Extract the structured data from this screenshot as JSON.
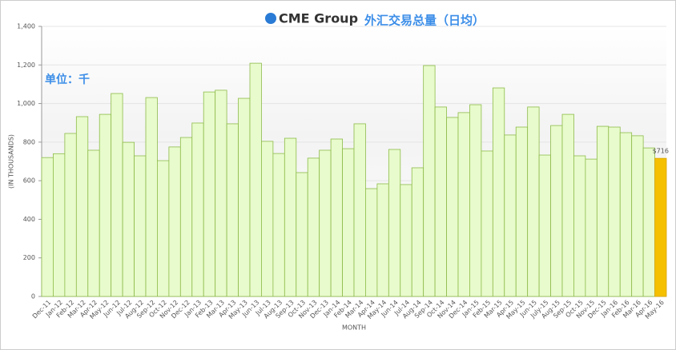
{
  "chart_data": {
    "type": "bar",
    "brand": "CME Group",
    "title": "外汇交易总量（日均）",
    "annotation": "单位：千",
    "y_label": "(IN THOUSANDS)",
    "x_label": "MONTH",
    "categories": [
      "Dec-11",
      "Jan-12",
      "Feb-12",
      "Mar-12",
      "Apr-12",
      "May-12",
      "Jun-12",
      "Jul-12",
      "Aug-12",
      "Sep-12",
      "Oct-12",
      "Nov-12",
      "Dec-12",
      "Jan-13",
      "Feb-13",
      "Mar-13",
      "Apr-13",
      "May-13",
      "Jun-13",
      "Jul-13",
      "Aug-13",
      "Sep-13",
      "Oct-13",
      "Nov-13",
      "Dec-13",
      "Jan-14",
      "Feb-14",
      "Mar-14",
      "Apr-14",
      "May-14",
      "Jun-14",
      "Jul-14",
      "Aug-14",
      "Sep-14",
      "Oct-14",
      "Nov-14",
      "Dec-14",
      "Jan-15",
      "Feb-15",
      "Mar-15",
      "Apr-15",
      "May-15",
      "Jun-15",
      "July-15",
      "Aug-15",
      "Sep-15",
      "Oct-15",
      "Nov-15",
      "Dec-15",
      "Jan-16",
      "Feb-16",
      "Mar-16",
      "Apr-16",
      "May-16"
    ],
    "values": [
      720,
      740,
      845,
      932,
      758,
      944,
      1052,
      799,
      729,
      1031,
      704,
      775,
      824,
      899,
      1060,
      1069,
      895,
      1027,
      1209,
      804,
      741,
      820,
      642,
      717,
      758,
      816,
      766,
      895,
      559,
      584,
      762,
      580,
      667,
      1197,
      982,
      928,
      953,
      994,
      754,
      1081,
      837,
      878,
      982,
      733,
      886,
      944,
      729,
      712,
      882,
      878,
      849,
      833,
      770,
      716
    ],
    "value_labels": [
      null,
      null,
      null,
      null,
      null,
      null,
      null,
      null,
      null,
      null,
      null,
      null,
      null,
      null,
      null,
      null,
      null,
      null,
      null,
      null,
      null,
      null,
      null,
      null,
      null,
      null,
      null,
      null,
      null,
      null,
      null,
      null,
      null,
      null,
      null,
      null,
      null,
      null,
      null,
      null,
      null,
      null,
      null,
      null,
      null,
      null,
      null,
      null,
      null,
      null,
      null,
      null,
      null,
      "$716"
    ],
    "colors": [
      "#e8fbcc",
      "#e8fbcc",
      "#e8fbcc",
      "#e8fbcc",
      "#e8fbcc",
      "#e8fbcc",
      "#e8fbcc",
      "#e8fbcc",
      "#e8fbcc",
      "#e8fbcc",
      "#e8fbcc",
      "#e8fbcc",
      "#e8fbcc",
      "#e8fbcc",
      "#e8fbcc",
      "#e8fbcc",
      "#e8fbcc",
      "#e8fbcc",
      "#e8fbcc",
      "#e8fbcc",
      "#e8fbcc",
      "#e8fbcc",
      "#e8fbcc",
      "#e8fbcc",
      "#e8fbcc",
      "#e8fbcc",
      "#e8fbcc",
      "#e8fbcc",
      "#e8fbcc",
      "#e8fbcc",
      "#e8fbcc",
      "#e8fbcc",
      "#e8fbcc",
      "#e8fbcc",
      "#e8fbcc",
      "#e8fbcc",
      "#e8fbcc",
      "#e8fbcc",
      "#e8fbcc",
      "#e8fbcc",
      "#e8fbcc",
      "#e8fbcc",
      "#e8fbcc",
      "#e8fbcc",
      "#e8fbcc",
      "#e8fbcc",
      "#e8fbcc",
      "#e8fbcc",
      "#e8fbcc",
      "#e8fbcc",
      "#e8fbcc",
      "#e8fbcc",
      "#e8fbcc",
      "#f5c000"
    ],
    "ylim": [
      0,
      1400
    ],
    "yticks": [
      0,
      200,
      400,
      600,
      800,
      {
        "value": 1000,
        "label": "1,000"
      },
      {
        "value": 1200,
        "label": "1,200"
      },
      {
        "value": 1400,
        "label": "1,400"
      }
    ],
    "grid": true
  }
}
